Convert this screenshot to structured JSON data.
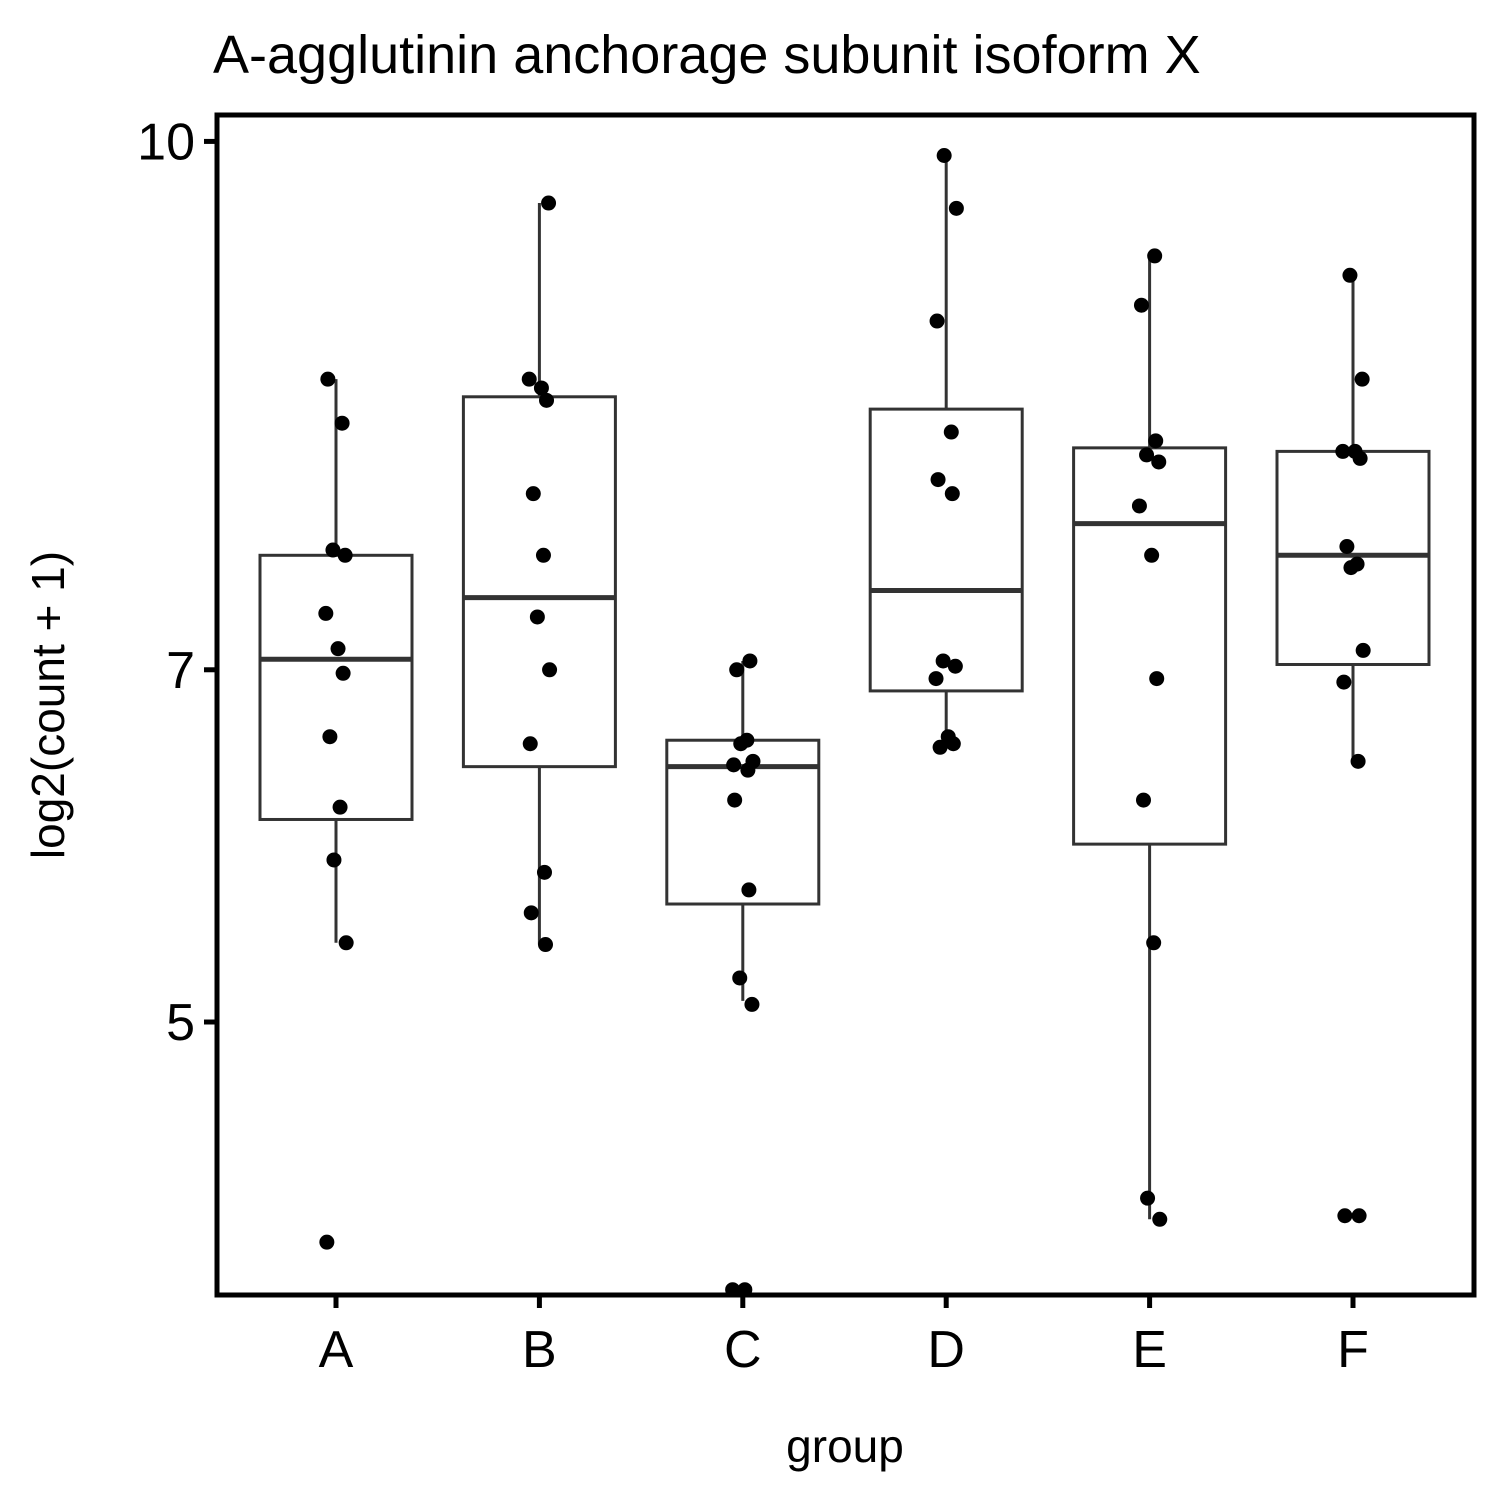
{
  "chart_data": {
    "type": "box",
    "title": "A-agglutinin anchorage subunit isoform X",
    "xlabel": "group",
    "ylabel": "log2(count + 1)",
    "ylim": [
      3.45,
      10.15
    ],
    "yticks": [
      5,
      7,
      10
    ],
    "grid": false,
    "legend": "none",
    "categories": [
      "A",
      "B",
      "C",
      "D",
      "E",
      "F"
    ],
    "boxes": [
      {
        "group": "A",
        "lower_whisker": 5.45,
        "q1": 6.15,
        "median": 7.06,
        "q3": 7.65,
        "upper_whisker": 8.65
      },
      {
        "group": "B",
        "lower_whisker": 5.44,
        "q1": 6.45,
        "median": 7.41,
        "q3": 8.55,
        "upper_whisker": 9.65
      },
      {
        "group": "C",
        "lower_whisker": 5.12,
        "q1": 5.67,
        "median": 6.45,
        "q3": 6.6,
        "upper_whisker": 7.05
      },
      {
        "group": "D",
        "lower_whisker": 6.56,
        "q1": 6.88,
        "median": 7.45,
        "q3": 8.48,
        "upper_whisker": 9.92
      },
      {
        "group": "E",
        "lower_whisker": 3.88,
        "q1": 6.01,
        "median": 7.83,
        "q3": 8.26,
        "upper_whisker": 9.35
      },
      {
        "group": "F",
        "lower_whisker": 6.48,
        "q1": 7.03,
        "median": 7.65,
        "q3": 8.24,
        "upper_whisker": 9.24
      }
    ],
    "points": [
      {
        "group": "A",
        "values": [
          8.65,
          8.4,
          7.68,
          7.65,
          7.32,
          7.12,
          6.98,
          6.62,
          6.22,
          5.92,
          5.45,
          3.75
        ]
      },
      {
        "group": "B",
        "values": [
          9.65,
          8.65,
          8.6,
          8.53,
          8.0,
          7.65,
          7.3,
          7.0,
          6.58,
          5.85,
          5.62,
          5.44
        ]
      },
      {
        "group": "C",
        "values": [
          7.05,
          7.0,
          6.6,
          6.58,
          6.48,
          6.46,
          6.43,
          6.26,
          5.75,
          5.25,
          5.1,
          3.48,
          3.48
        ]
      },
      {
        "group": "D",
        "values": [
          9.92,
          9.62,
          8.98,
          8.35,
          8.08,
          8.0,
          7.05,
          7.02,
          6.95,
          6.62,
          6.58,
          6.56
        ]
      },
      {
        "group": "E",
        "values": [
          9.35,
          9.07,
          8.3,
          8.22,
          8.18,
          7.93,
          7.65,
          6.95,
          6.26,
          5.45,
          4.0,
          3.88
        ]
      },
      {
        "group": "F",
        "values": [
          9.24,
          8.65,
          8.24,
          8.24,
          8.2,
          7.7,
          7.6,
          7.58,
          7.11,
          6.93,
          6.48,
          3.9,
          3.9
        ]
      }
    ]
  }
}
